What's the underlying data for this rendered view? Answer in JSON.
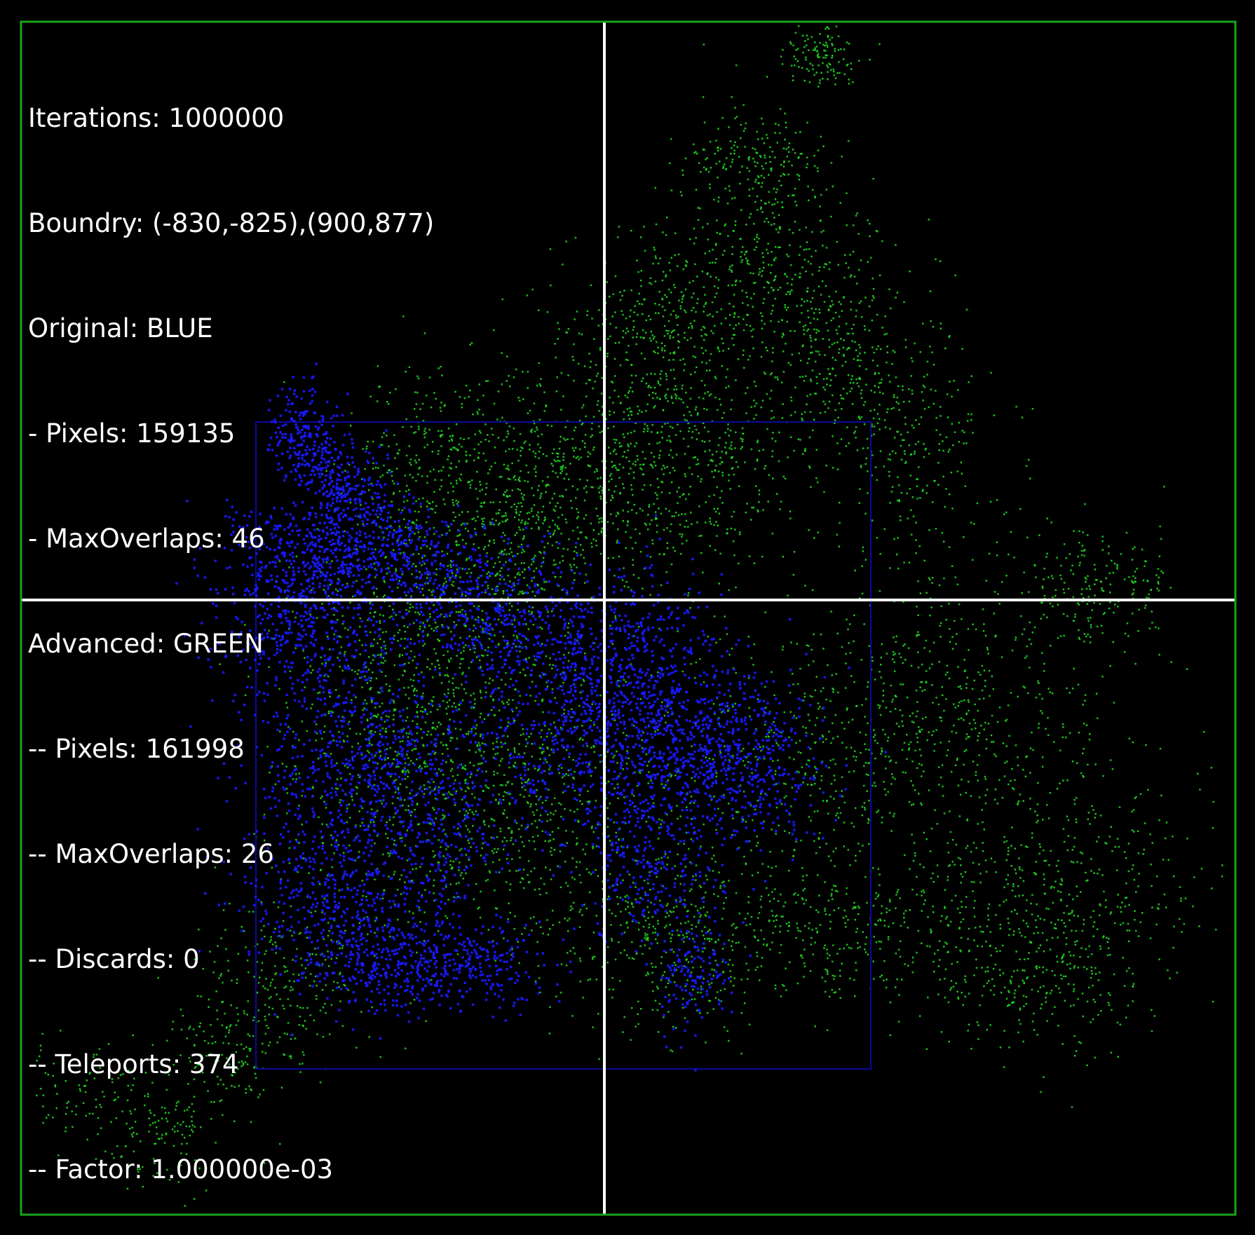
{
  "colors": {
    "background": "#000000",
    "frame": "#1aa31a",
    "axes": "#ffffff",
    "original_box": "#0a0a9a",
    "original_walk": "#1a1aff",
    "advanced_walk": "#22e022",
    "text": "#ffffff"
  },
  "stats": {
    "iterations": "Iterations: 1000000",
    "boundary": "Boundry: (-830,-825),(900,877)",
    "original": "Original: BLUE",
    "original_pixels": "- Pixels: 159135",
    "original_max_overlaps": "- MaxOverlaps: 46",
    "advanced": "Advanced: GREEN",
    "advanced_pixels": "-- Pixels: 161998",
    "advanced_max_overlaps": "-- MaxOverlaps: 26",
    "advanced_discards": "-- Discards: 0",
    "advanced_teleports": "-- Teleports: 374",
    "advanced_factor": "-- Factor: 1.000000e-03"
  }
}
